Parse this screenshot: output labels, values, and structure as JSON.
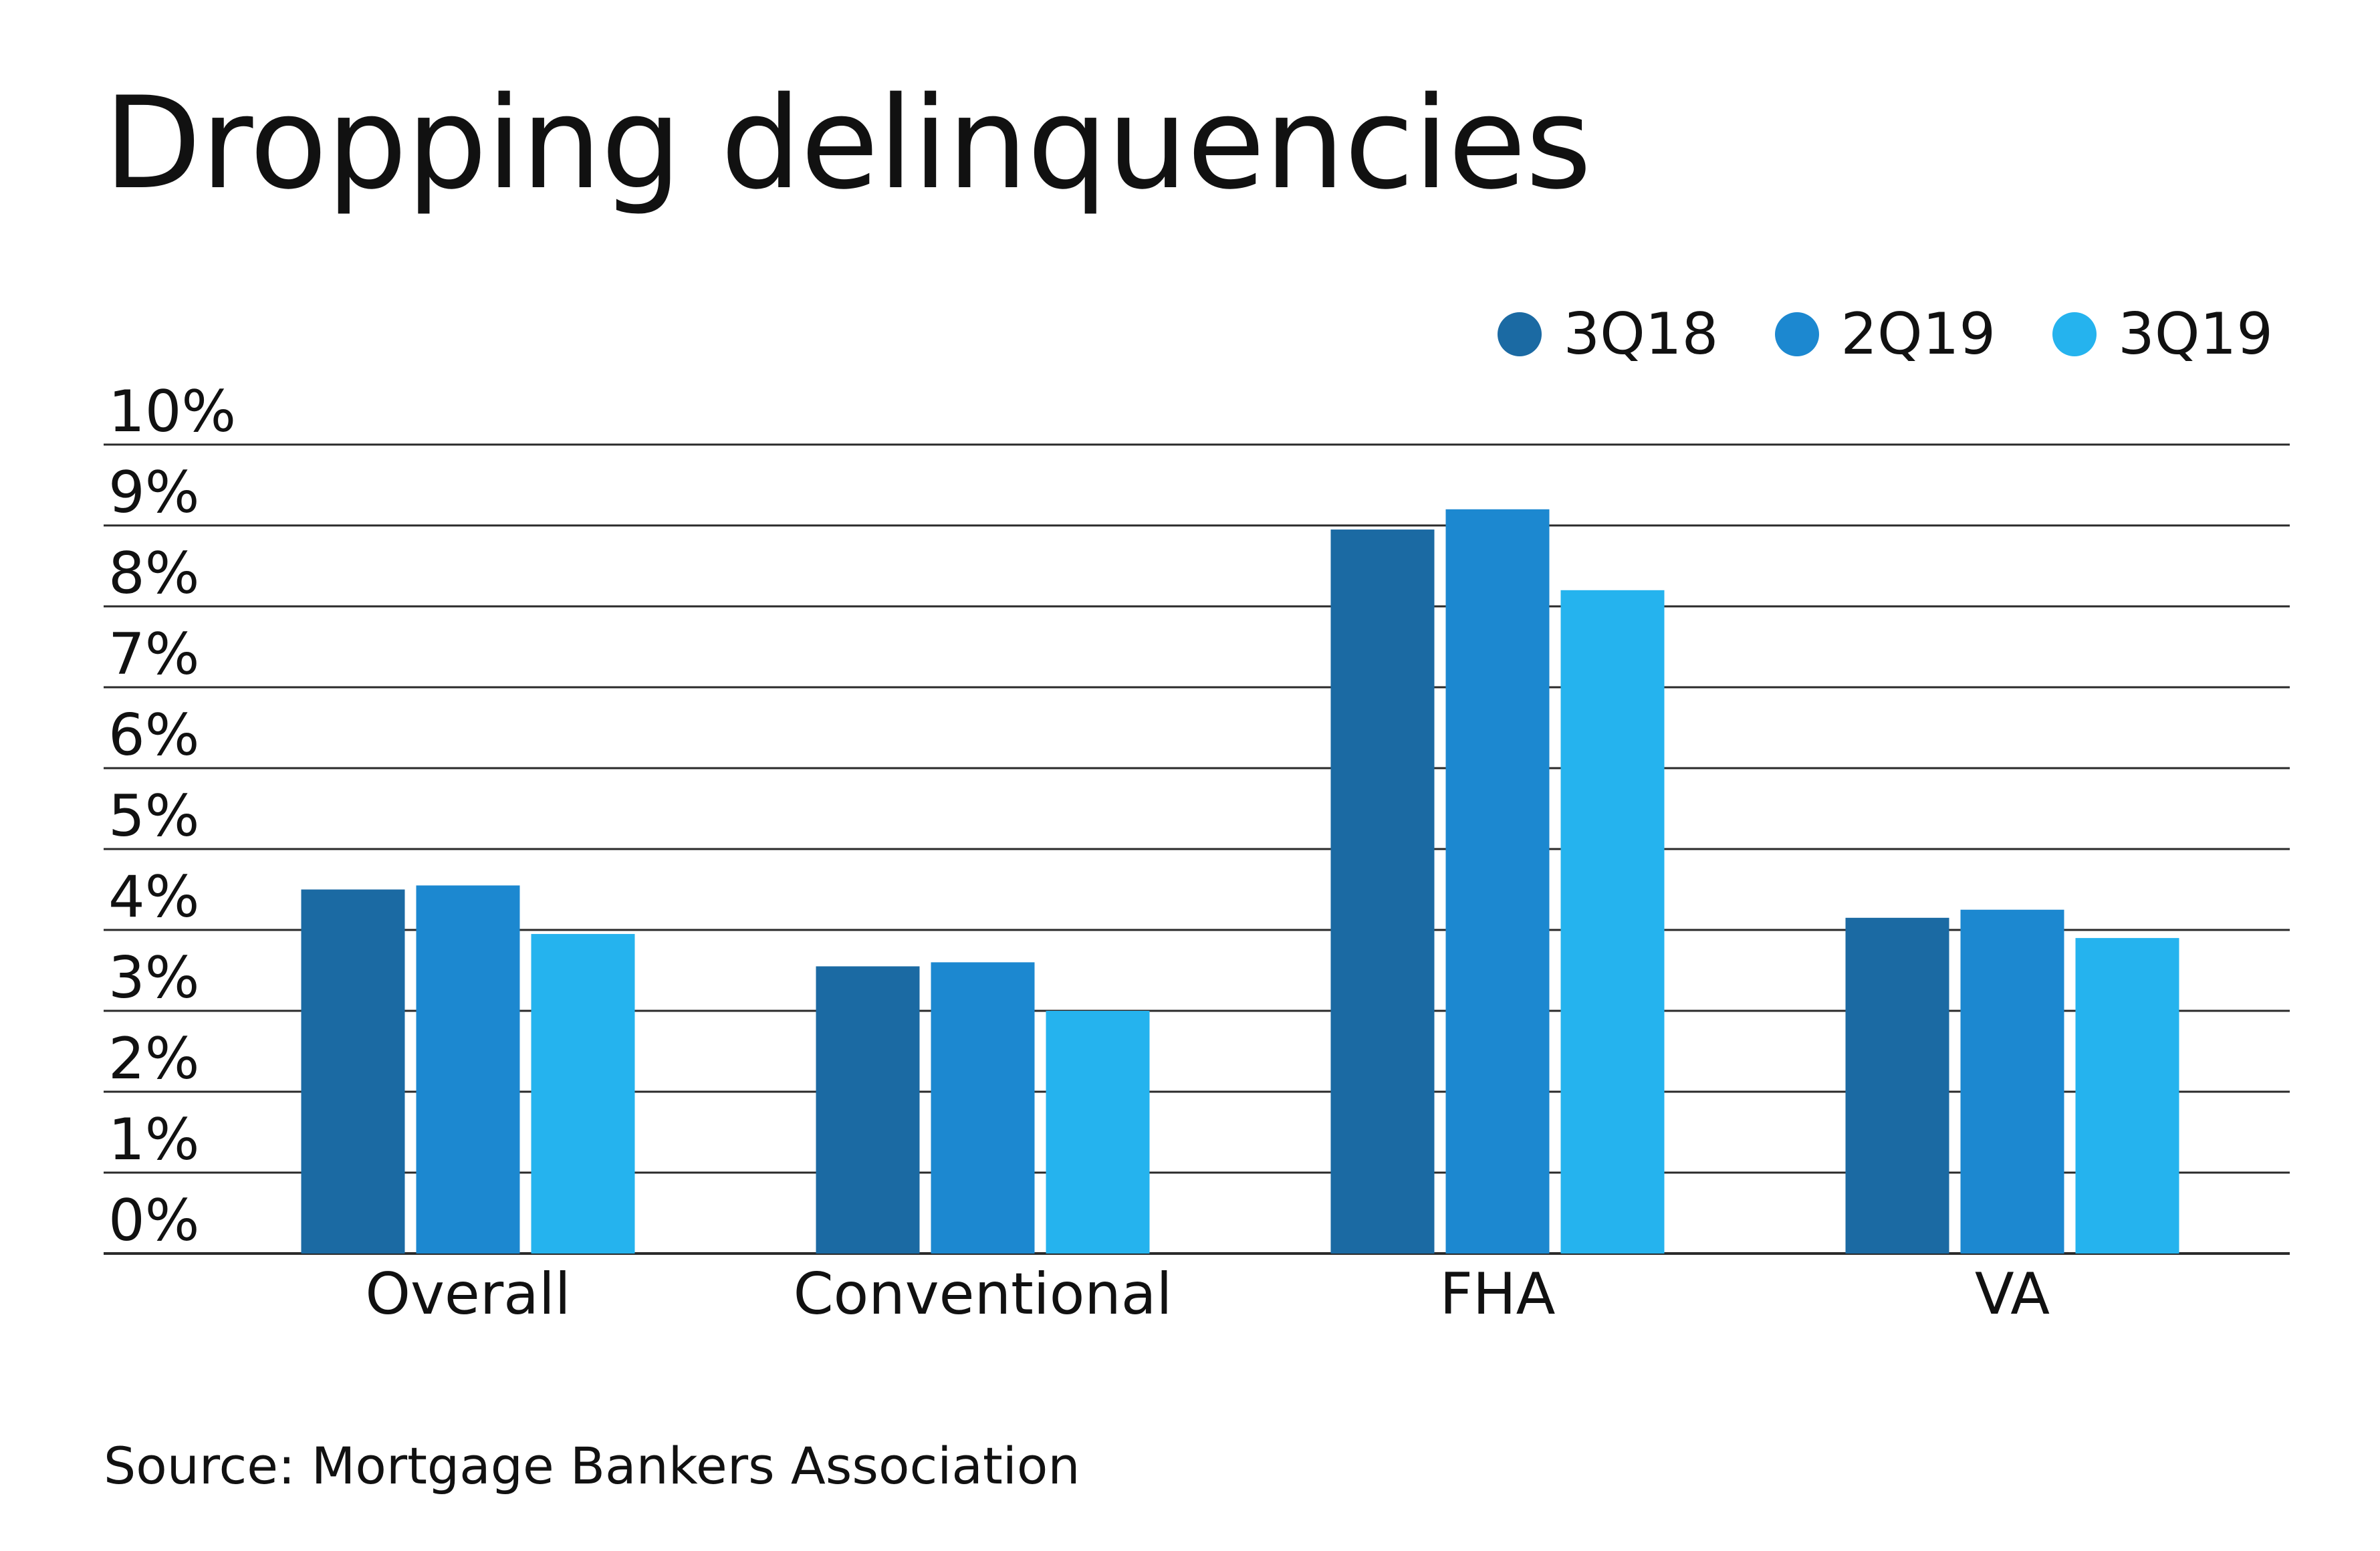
{
  "chart_data": {
    "type": "bar",
    "title": "Dropping delinquencies",
    "categories": [
      "Overall",
      "Conventional",
      "FHA",
      "VA"
    ],
    "series": [
      {
        "name": "3Q18",
        "color": "#1b6aa3",
        "values": [
          4.5,
          3.55,
          8.95,
          4.15
        ]
      },
      {
        "name": "2Q19",
        "color": "#1c88d0",
        "values": [
          4.55,
          3.6,
          9.2,
          4.25
        ]
      },
      {
        "name": "3Q19",
        "color": "#25b3ee",
        "values": [
          3.95,
          3.0,
          8.2,
          3.9
        ]
      }
    ],
    "ylim": [
      0,
      10
    ],
    "yticks": [
      "0%",
      "1%",
      "2%",
      "3%",
      "4%",
      "5%",
      "6%",
      "7%",
      "8%",
      "9%",
      "10%"
    ],
    "xlabel": "",
    "ylabel": "",
    "grid": true,
    "legend_position": "top-right",
    "source": "Source: Mortgage Bankers Association"
  }
}
